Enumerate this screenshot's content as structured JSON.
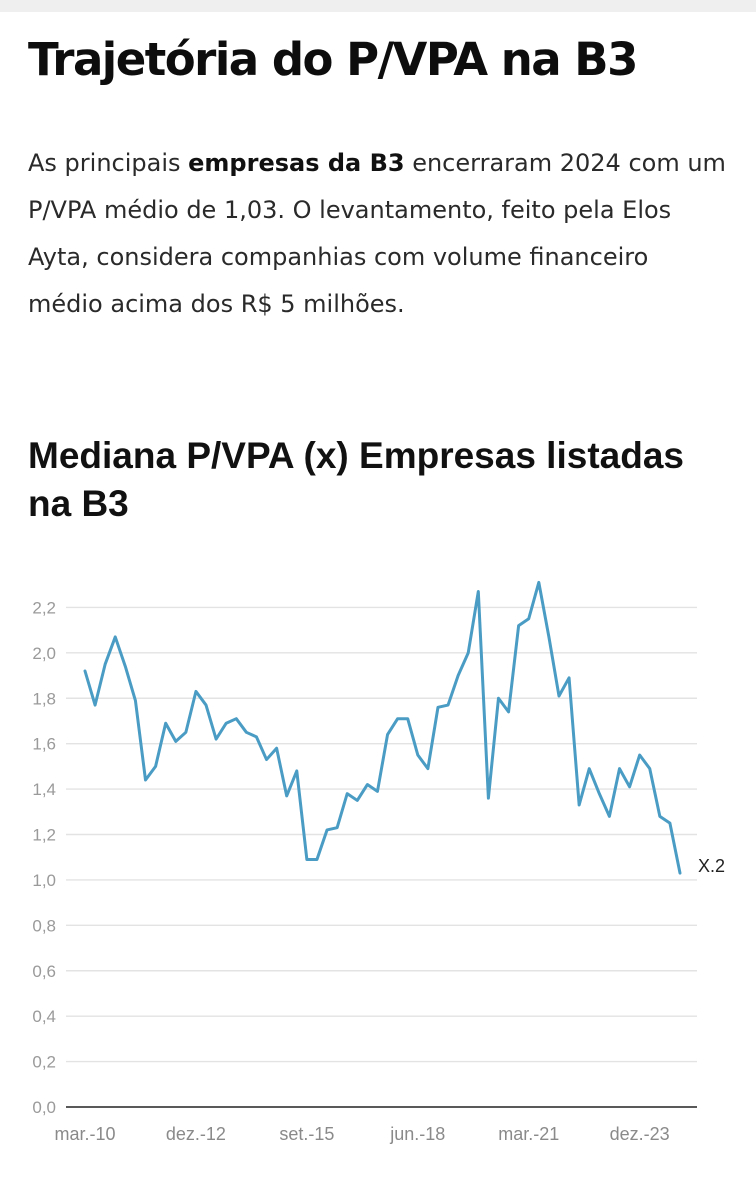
{
  "article": {
    "title": "Trajetória do P/VPA na B3",
    "lead_1": "As principais ",
    "lead_bold": "empresas da B3",
    "lead_2": " encerraram 2024 com um P/VPA médio de 1,03. O levantamento, feito pela Elos Ayta, considera companhias com volume financeiro médio acima dos R$ 5 milhões."
  },
  "chart_data": {
    "type": "line",
    "title": "Mediana P/VPA (x) Empresas listadas na B3",
    "ylim": [
      0,
      2.4
    ],
    "y_ticks": [
      "0,0",
      "0,2",
      "0,4",
      "0,6",
      "0,8",
      "1,0",
      "1,2",
      "1,4",
      "1,6",
      "1,8",
      "2,0",
      "2,2"
    ],
    "x_tick_labels": [
      "mar.-10",
      "dez.-12",
      "set.-15",
      "jun.-18",
      "mar.-21",
      "dez.-23"
    ],
    "x_start": "2010-03",
    "x_step_months": 3,
    "grid": true,
    "line_color": "#4a9cc4",
    "end_label": "X.2",
    "series": [
      {
        "values": [
          1.92,
          1.77,
          1.95,
          2.07,
          1.94,
          1.79,
          1.44,
          1.5,
          1.69,
          1.61,
          1.65,
          1.83,
          1.77,
          1.62,
          1.69,
          1.71,
          1.65,
          1.63,
          1.53,
          1.58,
          1.37,
          1.48,
          1.09,
          1.09,
          1.22,
          1.23,
          1.38,
          1.35,
          1.42,
          1.39,
          1.64,
          1.71,
          1.71,
          1.55,
          1.49,
          1.76,
          1.77,
          1.9,
          2.0,
          2.27,
          1.36,
          1.8,
          1.74,
          2.12,
          2.15,
          2.31,
          2.07,
          1.81,
          1.89,
          1.33,
          1.49,
          1.38,
          1.28,
          1.49,
          1.41,
          1.55,
          1.49,
          1.28,
          1.25,
          1.03
        ]
      }
    ]
  }
}
